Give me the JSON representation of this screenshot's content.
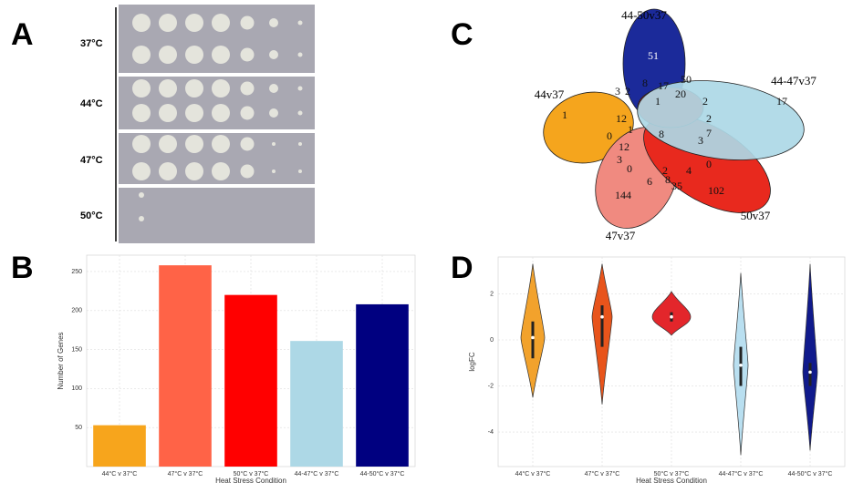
{
  "panels": [
    "A",
    "B",
    "C",
    "D"
  ],
  "plate": {
    "temperatures": [
      "37°C",
      "44°C",
      "47°C",
      "50°C"
    ]
  },
  "venn": {
    "sets": [
      "44-50v37",
      "44-47v37",
      "44v37",
      "50v37",
      "47v37"
    ],
    "counts": [
      51,
      1,
      17,
      102,
      144,
      8,
      3,
      2,
      8,
      17,
      20,
      50,
      1,
      2,
      12,
      0,
      12,
      3,
      0,
      6,
      8,
      35,
      2,
      4,
      0,
      3,
      7,
      2,
      1
    ]
  },
  "chart_data": [
    {
      "type": "bar",
      "xlabel": "Heat Stress Condition",
      "ylabel": "Number of Genes",
      "categories": [
        "44°C v 37°C",
        "47°C v 37°C",
        "50°C v 37°C",
        "44-47°C v 37°C",
        "44-50°C v 37°C"
      ],
      "values": [
        53,
        258,
        220,
        161,
        208
      ],
      "colors": [
        "#f7a51c",
        "#ff6347",
        "#ff0000",
        "#add8e6",
        "#000080"
      ],
      "ylim": [
        0,
        271
      ],
      "yticks": [
        50,
        100,
        150,
        200,
        250
      ],
      "grid": true
    },
    {
      "type": "violin",
      "xlabel": "Heat Stress Condition",
      "ylabel": "logFC",
      "categories": [
        "44°C v 37°C",
        "47°C v 37°C",
        "50°C v 37°C",
        "44-47°C v 37°C",
        "44-50°C v 37°C"
      ],
      "min": [
        -2.5,
        -2.8,
        0.2,
        -5,
        -4.8
      ],
      "max": [
        3.3,
        3.3,
        2.1,
        2.9,
        3.3
      ],
      "q1": [
        -0.8,
        -0.3,
        0.8,
        -2,
        -2
      ],
      "median": [
        0.1,
        1,
        1,
        -1.1,
        -1.4
      ],
      "q3": [
        0.8,
        1.5,
        1.2,
        -0.3,
        -1
      ],
      "colors": [
        "#f2a22c",
        "#e8541b",
        "#e3262b",
        "#b9dff0",
        "#101a8c"
      ],
      "ylim": [
        -5.5,
        3.6
      ],
      "yticks": [
        -4,
        -2,
        0,
        2
      ],
      "grid": true
    }
  ]
}
